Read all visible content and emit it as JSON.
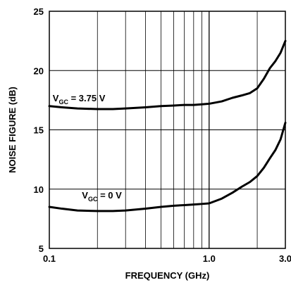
{
  "chart_data": {
    "type": "line",
    "title": "",
    "xlabel": "FREQUENCY (GHz)",
    "ylabel": "NOISE FIGURE (dB)",
    "x_scale": "log",
    "xlim": [
      0.1,
      3.0
    ],
    "ylim": [
      5,
      25
    ],
    "grid": true,
    "legend": "none",
    "x_ticks": [
      {
        "value": 0.1,
        "label": "0.1"
      },
      {
        "value": 1.0,
        "label": "1.0"
      },
      {
        "value": 3.0,
        "label": "3.0"
      }
    ],
    "y_ticks": [
      {
        "value": 5,
        "label": "5"
      },
      {
        "value": 10,
        "label": "10"
      },
      {
        "value": 15,
        "label": "15"
      },
      {
        "value": 20,
        "label": "20"
      },
      {
        "value": 25,
        "label": "25"
      }
    ],
    "x_minor_gridlines": [
      0.2,
      0.3,
      0.4,
      0.5,
      0.6,
      0.7,
      0.8,
      0.9,
      2.0
    ],
    "series": [
      {
        "label": {
          "main": "V",
          "sub": "GC",
          "rest": " = 3.75 V"
        },
        "label_at": {
          "x": 0.105,
          "y": 17.4
        },
        "color": "#000000",
        "x": [
          0.1,
          0.12,
          0.15,
          0.2,
          0.25,
          0.3,
          0.4,
          0.5,
          0.6,
          0.7,
          0.8,
          0.9,
          1.0,
          1.2,
          1.4,
          1.6,
          1.8,
          2.0,
          2.2,
          2.4,
          2.6,
          2.8,
          3.0
        ],
        "y": [
          17.0,
          16.9,
          16.8,
          16.75,
          16.75,
          16.8,
          16.9,
          17.0,
          17.05,
          17.1,
          17.1,
          17.15,
          17.2,
          17.4,
          17.7,
          17.9,
          18.1,
          18.5,
          19.3,
          20.2,
          20.8,
          21.5,
          22.5
        ]
      },
      {
        "label": {
          "main": "V",
          "sub": "GC",
          "rest": " = 0 V"
        },
        "label_at": {
          "x": 0.16,
          "y": 9.2
        },
        "color": "#000000",
        "x": [
          0.1,
          0.12,
          0.15,
          0.2,
          0.25,
          0.3,
          0.4,
          0.5,
          0.6,
          0.7,
          0.8,
          0.9,
          1.0,
          1.2,
          1.4,
          1.6,
          1.8,
          2.0,
          2.2,
          2.4,
          2.6,
          2.8,
          3.0
        ],
        "y": [
          8.5,
          8.35,
          8.2,
          8.15,
          8.15,
          8.2,
          8.35,
          8.5,
          8.6,
          8.65,
          8.7,
          8.75,
          8.8,
          9.2,
          9.7,
          10.2,
          10.6,
          11.1,
          11.8,
          12.6,
          13.3,
          14.2,
          15.6
        ]
      }
    ]
  }
}
